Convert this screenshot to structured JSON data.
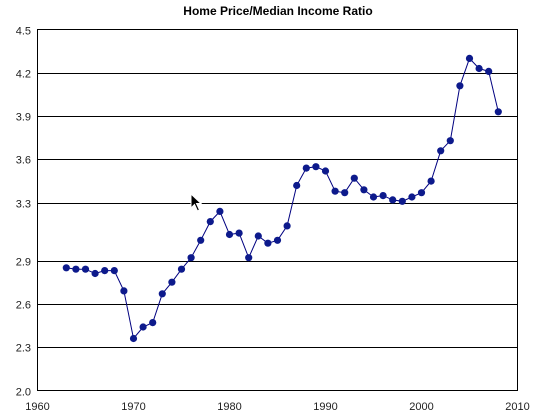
{
  "chart_data": {
    "type": "line",
    "title": "Home Price/Median Income Ratio",
    "xlabel": "",
    "ylabel": "",
    "xlim": [
      1960,
      2010
    ],
    "ylim": [
      2.0,
      4.5
    ],
    "x_ticks": [
      1960,
      1970,
      1980,
      1990,
      2000,
      2010
    ],
    "y_ticks": [
      2.0,
      2.3,
      2.6,
      2.9,
      3.3,
      3.6,
      3.9,
      4.2,
      4.5
    ],
    "y_tick_labels": [
      "2.0",
      "2.3",
      "2.6",
      "2.9",
      "3.3",
      "3.6",
      "3.9",
      "4.2",
      "4.5"
    ],
    "grid": "horizontal",
    "legend": "none",
    "colors": {
      "line": "#000080",
      "marker": "#0d1a8c"
    },
    "x": [
      1963,
      1964,
      1965,
      1966,
      1967,
      1968,
      1969,
      1970,
      1971,
      1972,
      1973,
      1974,
      1975,
      1976,
      1977,
      1978,
      1979,
      1980,
      1981,
      1982,
      1983,
      1984,
      1985,
      1986,
      1987,
      1988,
      1989,
      1990,
      1991,
      1992,
      1993,
      1994,
      1995,
      1996,
      1997,
      1998,
      1999,
      2000,
      2001,
      2002,
      2003,
      2004,
      2005,
      2006,
      2007,
      2008
    ],
    "values": [
      2.85,
      2.84,
      2.84,
      2.81,
      2.83,
      2.83,
      2.69,
      2.36,
      2.44,
      2.47,
      2.67,
      2.75,
      2.84,
      2.92,
      3.04,
      3.17,
      3.24,
      3.08,
      3.09,
      2.92,
      3.07,
      3.02,
      3.04,
      3.14,
      3.42,
      3.54,
      3.55,
      3.52,
      3.38,
      3.37,
      3.47,
      3.39,
      3.34,
      3.35,
      3.32,
      3.31,
      3.34,
      3.37,
      3.45,
      3.66,
      3.73,
      4.11,
      4.3,
      4.23,
      4.21,
      3.93
    ]
  },
  "cursor_icon": "arrow-pointer-icon"
}
